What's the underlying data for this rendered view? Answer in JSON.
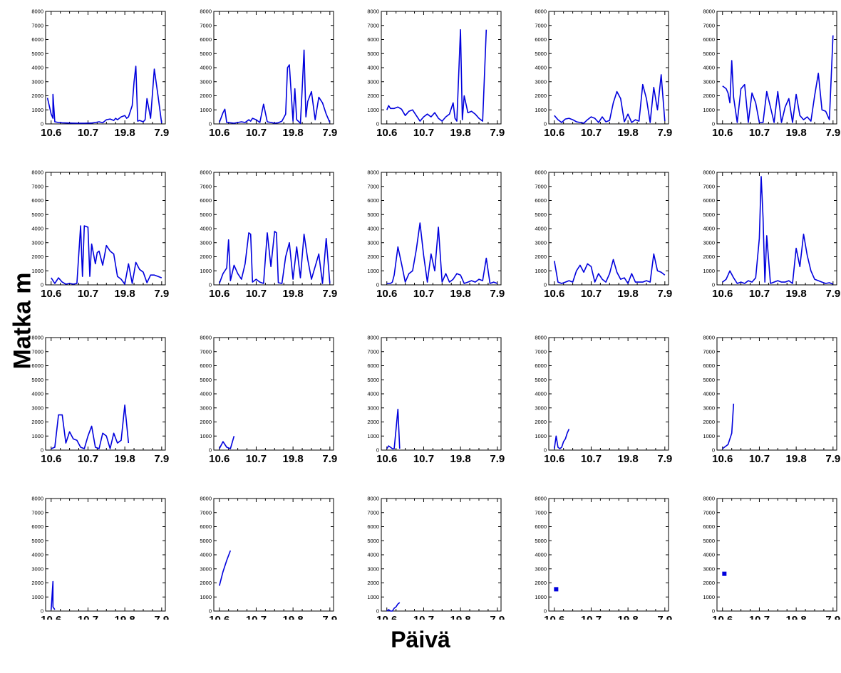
{
  "figure": {
    "ylabel": "Matka m",
    "xlabel": "Päivä"
  },
  "chart_data": {
    "type": "line",
    "layout": "grid 4 rows x 5 columns of small multiples",
    "line_color": "#0000dd",
    "xlabel": "Päivä",
    "ylabel": "Matka m",
    "x_tick_labels": [
      "10.6",
      "10.7",
      "19.8",
      "7.9"
    ],
    "x_tick_values": [
      0,
      20,
      40,
      60
    ],
    "xlim": [
      -3,
      62
    ],
    "ylim": [
      0,
      8000
    ],
    "y_ticks": [
      0,
      1000,
      2000,
      3000,
      4000,
      5000,
      6000,
      7000,
      8000
    ],
    "grid": false,
    "panels": [
      {
        "x": [
          -2,
          0,
          1,
          1,
          2,
          4,
          6,
          10,
          14,
          18,
          22,
          24,
          26,
          28,
          30,
          32,
          34,
          35,
          36,
          38,
          40,
          41,
          42,
          44,
          45,
          46,
          47,
          48,
          50,
          51,
          52,
          54,
          56,
          58,
          60
        ],
        "y": [
          1850,
          700,
          400,
          2100,
          150,
          100,
          80,
          60,
          50,
          50,
          60,
          100,
          150,
          80,
          300,
          350,
          250,
          400,
          300,
          500,
          600,
          400,
          500,
          1300,
          3000,
          4100,
          200,
          250,
          150,
          300,
          1800,
          400,
          3900,
          2000,
          50
        ]
      },
      {
        "x": [
          0,
          2,
          3,
          4,
          6,
          8,
          10,
          12,
          14,
          16,
          17,
          18,
          20,
          22,
          24,
          26,
          28,
          30,
          32,
          34,
          36,
          37,
          38,
          40,
          41,
          42,
          44,
          45,
          46,
          47,
          48,
          50,
          52,
          54,
          56,
          58,
          60
        ],
        "y": [
          100,
          800,
          1050,
          100,
          80,
          50,
          100,
          150,
          100,
          300,
          200,
          400,
          300,
          100,
          1400,
          150,
          100,
          50,
          80,
          200,
          700,
          4000,
          4200,
          200,
          2500,
          300,
          50,
          2600,
          5250,
          500,
          1600,
          2300,
          300,
          1900,
          1500,
          700,
          100
        ]
      },
      {
        "x": [
          0,
          1,
          2,
          4,
          6,
          8,
          10,
          12,
          14,
          16,
          18,
          20,
          22,
          24,
          26,
          28,
          30,
          32,
          34,
          36,
          37,
          38,
          40,
          41,
          42,
          44,
          46,
          48,
          50,
          52,
          54
        ],
        "y": [
          1000,
          1300,
          1100,
          1100,
          1200,
          1050,
          600,
          900,
          1000,
          600,
          200,
          500,
          700,
          500,
          800,
          400,
          200,
          500,
          700,
          1500,
          400,
          200,
          6700,
          300,
          2000,
          800,
          900,
          700,
          400,
          200,
          6700
        ]
      },
      {
        "x": [
          0,
          2,
          4,
          6,
          8,
          10,
          12,
          14,
          16,
          18,
          20,
          22,
          24,
          26,
          28,
          30,
          32,
          34,
          36,
          38,
          40,
          42,
          44,
          46,
          48,
          50,
          52,
          54,
          56,
          58,
          60
        ],
        "y": [
          600,
          300,
          100,
          350,
          400,
          300,
          150,
          100,
          50,
          300,
          500,
          400,
          100,
          500,
          150,
          250,
          1500,
          2300,
          1800,
          150,
          700,
          100,
          300,
          200,
          2800,
          1800,
          100,
          2600,
          1000,
          3500,
          200
        ]
      },
      {
        "x": [
          0,
          2,
          3,
          4,
          5,
          6,
          8,
          10,
          12,
          14,
          16,
          18,
          20,
          22,
          24,
          26,
          28,
          30,
          32,
          34,
          36,
          38,
          40,
          42,
          44,
          46,
          48,
          50,
          52,
          54,
          56,
          58,
          60
        ],
        "y": [
          2700,
          2500,
          2200,
          1500,
          4500,
          1900,
          100,
          2500,
          2800,
          100,
          2200,
          1500,
          100,
          100,
          2300,
          1200,
          100,
          2300,
          100,
          1200,
          1800,
          100,
          2100,
          600,
          300,
          500,
          200,
          2000,
          3600,
          1000,
          900,
          300,
          6300
        ]
      },
      {
        "x": [
          0,
          2,
          4,
          6,
          8,
          10,
          12,
          14,
          16,
          17,
          18,
          20,
          21,
          22,
          24,
          25,
          26,
          28,
          30,
          32,
          34,
          36,
          38,
          40,
          42,
          44,
          46,
          48,
          50,
          52,
          54,
          56,
          58,
          60
        ],
        "y": [
          500,
          100,
          500,
          200,
          50,
          100,
          50,
          100,
          4200,
          600,
          4200,
          4100,
          600,
          2900,
          1500,
          2300,
          2400,
          1400,
          2800,
          2400,
          2200,
          600,
          400,
          50,
          1500,
          100,
          1600,
          1100,
          900,
          150,
          700,
          700,
          600,
          500
        ]
      },
      {
        "x": [
          0,
          2,
          4,
          5,
          6,
          8,
          10,
          12,
          14,
          16,
          17,
          18,
          20,
          22,
          24,
          26,
          28,
          30,
          31,
          32,
          34,
          36,
          38,
          40,
          42,
          44,
          46,
          48,
          50,
          52,
          54,
          56,
          58,
          60
        ],
        "y": [
          100,
          800,
          1200,
          3200,
          300,
          1400,
          800,
          400,
          1500,
          3700,
          3600,
          200,
          400,
          200,
          100,
          3700,
          1300,
          3800,
          3700,
          150,
          100,
          2000,
          3000,
          400,
          2700,
          500,
          3600,
          1800,
          400,
          1300,
          2200,
          100,
          3300,
          100
        ]
      },
      {
        "x": [
          0,
          2,
          3,
          4,
          6,
          8,
          10,
          12,
          14,
          16,
          18,
          20,
          22,
          24,
          26,
          28,
          30,
          32,
          34,
          36,
          38,
          40,
          42,
          44,
          46,
          48,
          50,
          52,
          54,
          56,
          58,
          60
        ],
        "y": [
          100,
          100,
          200,
          700,
          2700,
          1500,
          200,
          800,
          1000,
          2500,
          4400,
          2100,
          200,
          2200,
          1000,
          4100,
          200,
          800,
          200,
          400,
          800,
          700,
          100,
          200,
          300,
          200,
          400,
          300,
          1900,
          100,
          200,
          100
        ]
      },
      {
        "x": [
          0,
          2,
          4,
          6,
          8,
          10,
          12,
          14,
          16,
          18,
          20,
          22,
          24,
          26,
          28,
          30,
          32,
          34,
          36,
          38,
          40,
          42,
          44,
          46,
          48,
          50,
          52,
          54,
          56,
          58,
          60
        ],
        "y": [
          1700,
          200,
          100,
          200,
          300,
          200,
          1000,
          1400,
          900,
          1500,
          1300,
          200,
          800,
          400,
          200,
          800,
          1800,
          900,
          400,
          500,
          100,
          800,
          200,
          200,
          200,
          300,
          200,
          2200,
          1000,
          900,
          700
        ]
      },
      {
        "x": [
          0,
          2,
          4,
          6,
          8,
          10,
          12,
          14,
          16,
          18,
          20,
          21,
          22,
          23,
          24,
          26,
          28,
          30,
          32,
          34,
          36,
          38,
          40,
          42,
          44,
          46,
          48,
          50,
          52,
          54,
          56,
          58,
          60
        ],
        "y": [
          200,
          400,
          1000,
          500,
          100,
          200,
          100,
          300,
          200,
          500,
          3300,
          7700,
          4800,
          200,
          3500,
          100,
          200,
          300,
          200,
          200,
          300,
          100,
          2600,
          1300,
          3600,
          2100,
          1000,
          400,
          300,
          200,
          100,
          150,
          50
        ]
      },
      {
        "x": [
          0,
          2,
          4,
          6,
          8,
          10,
          12,
          14,
          16,
          18,
          20,
          22,
          24,
          26,
          28,
          30,
          32,
          34,
          36,
          38,
          40,
          42
        ],
        "y": [
          100,
          200,
          2500,
          2500,
          500,
          1300,
          800,
          700,
          200,
          100,
          1000,
          1700,
          200,
          100,
          1200,
          1000,
          100,
          1200,
          500,
          700,
          3200,
          500
        ]
      },
      {
        "x": [
          0,
          2,
          4,
          6,
          8
        ],
        "y": [
          100,
          600,
          200,
          100,
          1000
        ]
      },
      {
        "x": [
          0,
          1,
          2,
          3,
          4,
          5,
          6,
          7
        ],
        "y": [
          100,
          300,
          200,
          100,
          100,
          1500,
          2900,
          100
        ]
      },
      {
        "x": [
          0,
          1,
          2,
          3,
          4,
          5,
          6,
          7,
          8
        ],
        "y": [
          100,
          1000,
          200,
          100,
          200,
          600,
          800,
          1200,
          1500
        ]
      },
      {
        "x": [
          0,
          1,
          2,
          3,
          4,
          5,
          6
        ],
        "y": [
          100,
          200,
          300,
          400,
          800,
          1200,
          3300
        ]
      },
      {
        "x": [
          0,
          1,
          1,
          2
        ],
        "y": [
          100,
          2100,
          300,
          100
        ]
      },
      {
        "x": [
          0,
          2,
          4,
          6
        ],
        "y": [
          1800,
          2800,
          3600,
          4300
        ]
      },
      {
        "x": [
          0,
          1,
          2,
          3,
          4,
          5,
          6,
          7
        ],
        "y": [
          0,
          100,
          0,
          0,
          200,
          300,
          500,
          600
        ]
      },
      {
        "x": [
          1
        ],
        "y": [
          1550
        ],
        "marker_only": true
      },
      {
        "x": [
          1
        ],
        "y": [
          2650
        ],
        "marker_only": true
      }
    ]
  }
}
